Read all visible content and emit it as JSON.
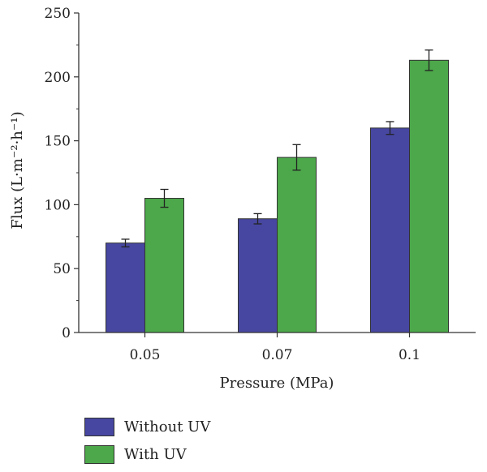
{
  "chart_data": {
    "type": "bar",
    "categories": [
      "0.05",
      "0.07",
      "0.1"
    ],
    "series": [
      {
        "name": "Without UV",
        "values": [
          70,
          89,
          160
        ],
        "errors": [
          3,
          4,
          5
        ],
        "color": "#4747a1"
      },
      {
        "name": "With UV",
        "values": [
          105,
          137,
          213
        ],
        "errors": [
          7,
          10,
          8
        ],
        "color": "#4ca84a"
      }
    ],
    "title": "",
    "xlabel": "Pressure (MPa)",
    "ylabel": "Flux (L·m⁻²·h⁻¹)",
    "ylim": [
      0,
      250
    ],
    "yticks": [
      "0",
      "50",
      "100",
      "150",
      "200",
      "250"
    ],
    "grid": false,
    "legend_position": "bottom-left"
  }
}
